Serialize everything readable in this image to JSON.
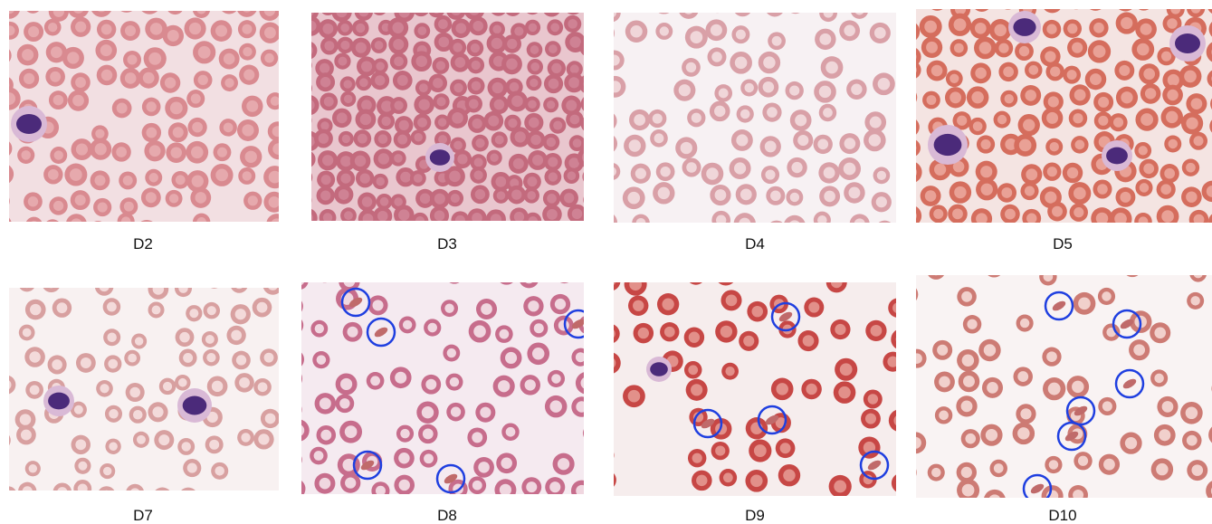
{
  "panels": [
    {
      "label": "D2"
    },
    {
      "label": "D3"
    },
    {
      "label": "D4"
    },
    {
      "label": "D5"
    },
    {
      "label": "D7"
    },
    {
      "label": "D8"
    },
    {
      "label": "D9"
    },
    {
      "label": "D10"
    }
  ]
}
